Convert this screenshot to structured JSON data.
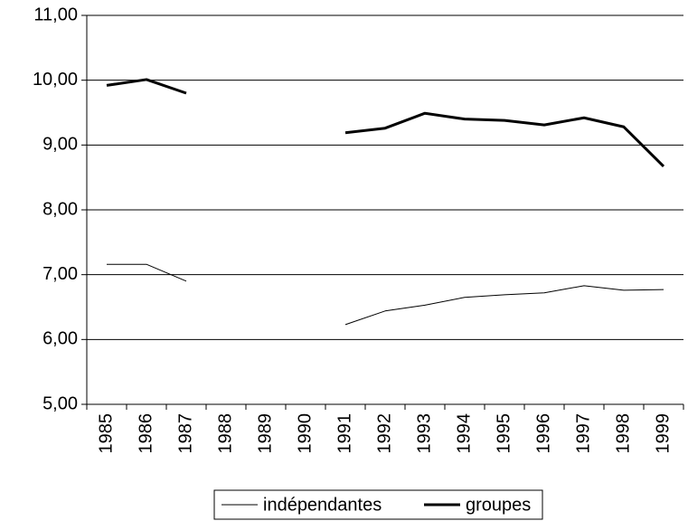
{
  "chart_data": {
    "type": "line",
    "categories": [
      "1985",
      "1986",
      "1987",
      "1988",
      "1989",
      "1990",
      "1991",
      "1992",
      "1993",
      "1994",
      "1995",
      "1996",
      "1997",
      "1998",
      "1999"
    ],
    "series": [
      {
        "name": "indépendantes",
        "color": "#000000",
        "width": 1,
        "values": [
          7.16,
          7.16,
          6.9,
          null,
          null,
          null,
          6.23,
          6.44,
          6.53,
          6.65,
          6.69,
          6.72,
          6.83,
          6.76,
          6.77
        ]
      },
      {
        "name": "groupes",
        "color": "#000000",
        "width": 3,
        "values": [
          9.92,
          10.01,
          9.8,
          null,
          null,
          null,
          9.19,
          9.26,
          9.49,
          9.4,
          9.38,
          9.31,
          9.42,
          9.28,
          8.67
        ]
      }
    ],
    "ylim": [
      5,
      11
    ],
    "yticks": [
      {
        "value": 5,
        "label": "5,00"
      },
      {
        "value": 6,
        "label": "6,00"
      },
      {
        "value": 7,
        "label": "7,00"
      },
      {
        "value": 8,
        "label": "8,00"
      },
      {
        "value": 9,
        "label": "9,00"
      },
      {
        "value": 10,
        "label": "10,00"
      },
      {
        "value": 11,
        "label": "11,00"
      }
    ],
    "grid": true,
    "legend": "bottom"
  }
}
